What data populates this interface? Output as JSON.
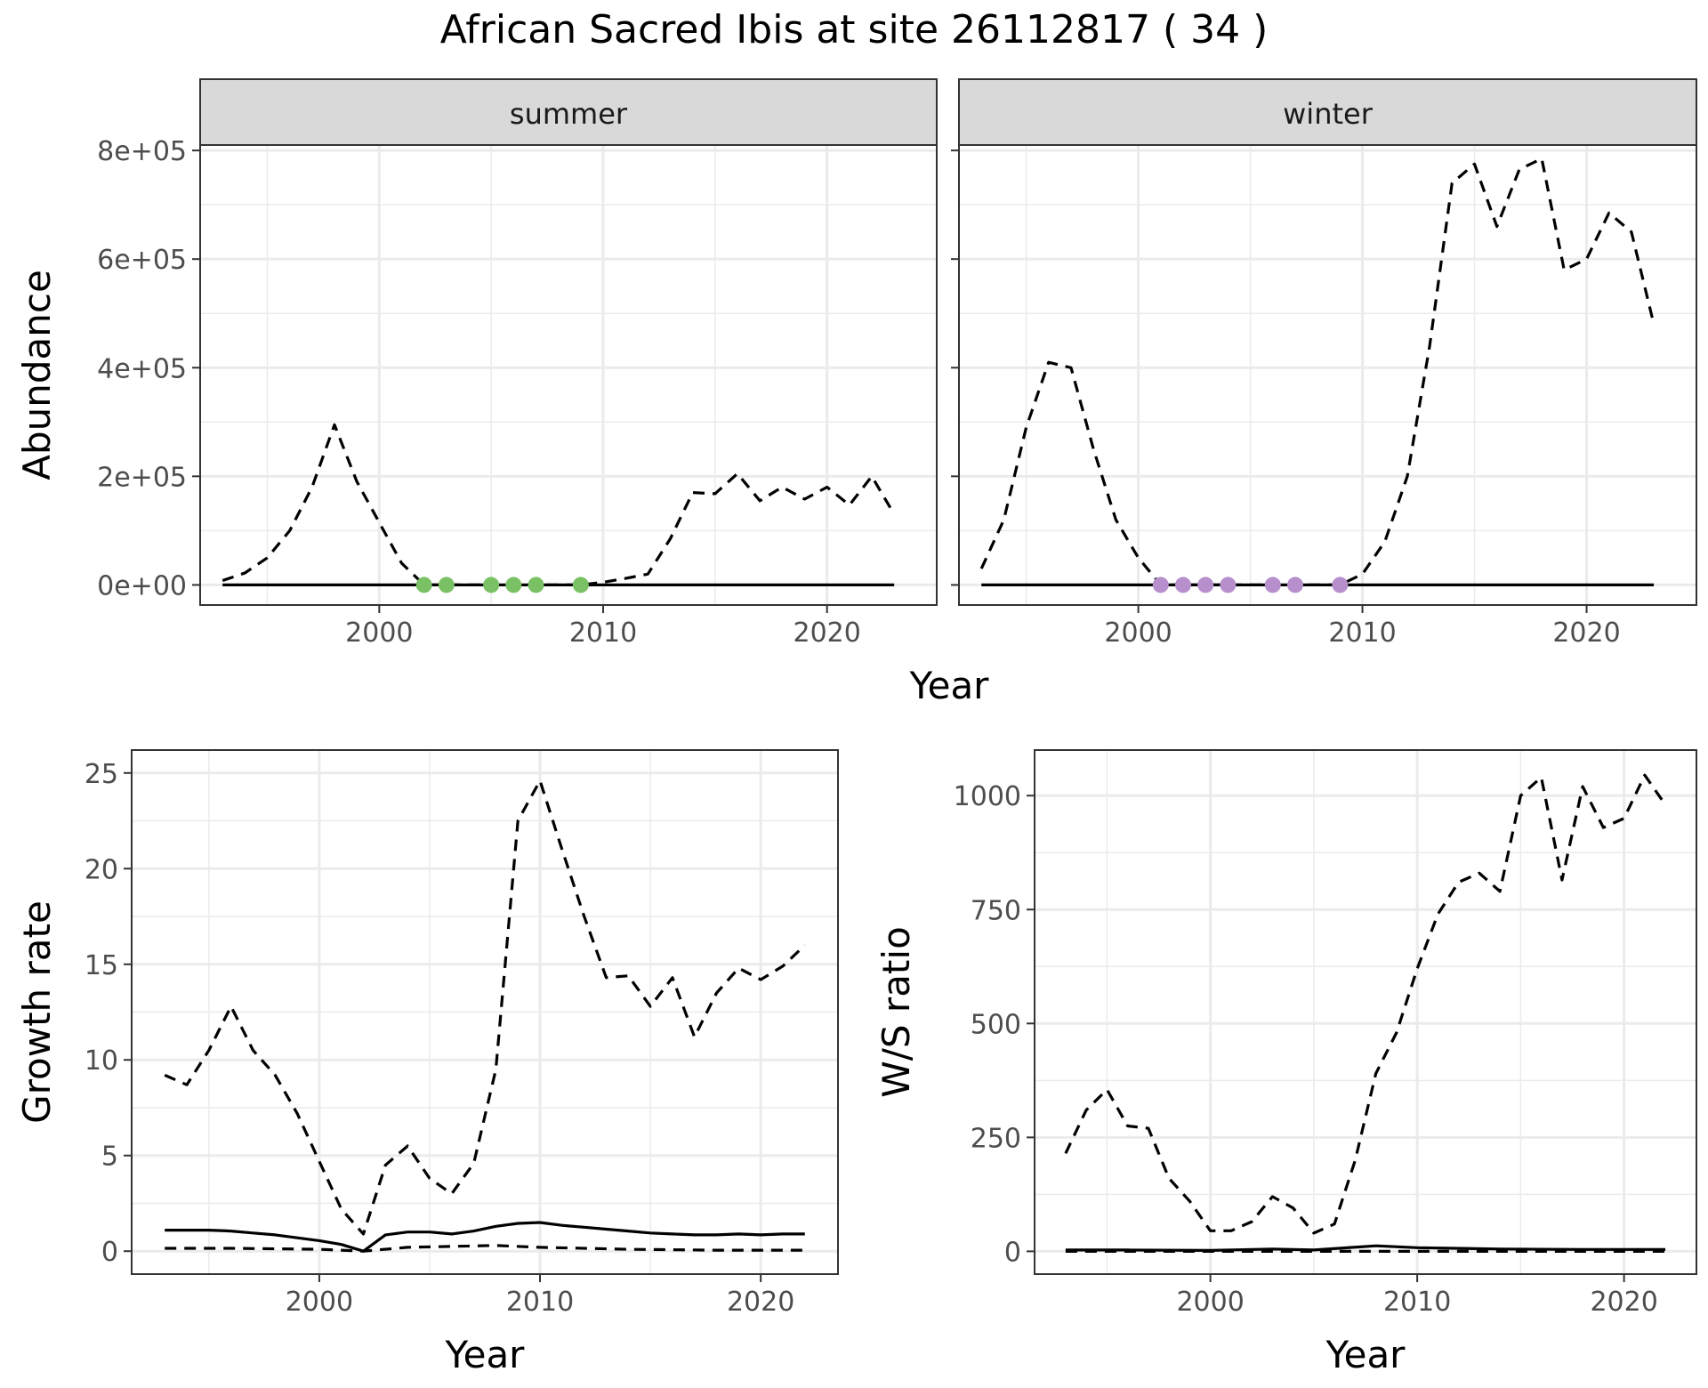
{
  "title": "African Sacred Ibis at site 26112817 ( 34 )",
  "colors": {
    "summer_points": "#7ac165",
    "winter_points": "#b68fcc",
    "line": "#000000",
    "strip_fill": "#d9d9d9",
    "grid": "#ebebeb"
  },
  "chart_data": [
    {
      "type": "line",
      "panel": "summer",
      "strip_label": "summer",
      "xlabel": "Year",
      "ylabel": "Abundance",
      "xlim": [
        1992.0,
        2024.9
      ],
      "ylim": [
        -37000,
        810000
      ],
      "x_ticks": [
        2000,
        2010,
        2020
      ],
      "x_tick_labels": [
        "2000",
        "2010",
        "2020"
      ],
      "y_ticks": [
        0,
        200000,
        400000,
        600000,
        800000
      ],
      "y_tick_labels": [
        "0e+00",
        "2e+05",
        "4e+05",
        "6e+05",
        "8e+05"
      ],
      "grid": true,
      "series": [
        {
          "style": "dashed",
          "x": [
            1993,
            1994,
            1995,
            1996,
            1997,
            1998,
            1999,
            2000,
            2001,
            2002,
            2003,
            2004,
            2005,
            2006,
            2007,
            2008,
            2009,
            2010,
            2011,
            2012,
            2013,
            2014,
            2015,
            2016,
            2017,
            2018,
            2019,
            2020,
            2021,
            2022,
            2023
          ],
          "y": [
            8000,
            22000,
            50000,
            100000,
            180000,
            295000,
            190000,
            115000,
            40000,
            0,
            0,
            0,
            0,
            0,
            0,
            0,
            0,
            5000,
            12000,
            20000,
            85000,
            170000,
            168000,
            205000,
            155000,
            180000,
            158000,
            180000,
            147000,
            200000,
            130000
          ]
        },
        {
          "style": "solid",
          "x": [
            1993,
            2023
          ],
          "y": [
            0,
            0
          ]
        }
      ],
      "points": {
        "x": [
          2002,
          2003,
          2005,
          2006,
          2007,
          2009
        ],
        "y": [
          0,
          0,
          0,
          0,
          0,
          0
        ]
      }
    },
    {
      "type": "line",
      "panel": "winter",
      "strip_label": "winter",
      "xlabel": "Year",
      "ylabel": "",
      "xlim": [
        1992.0,
        2024.9
      ],
      "ylim": [
        -37000,
        810000
      ],
      "x_ticks": [
        2000,
        2010,
        2020
      ],
      "x_tick_labels": [
        "2000",
        "2010",
        "2020"
      ],
      "grid": true,
      "series": [
        {
          "style": "dashed",
          "x": [
            1993,
            1994,
            1995,
            1996,
            1997,
            1998,
            1999,
            2000,
            2001,
            2002,
            2003,
            2004,
            2005,
            2006,
            2007,
            2008,
            2009,
            2010,
            2011,
            2012,
            2013,
            2014,
            2015,
            2016,
            2017,
            2018,
            2019,
            2020,
            2021,
            2022,
            2023
          ],
          "y": [
            30000,
            120000,
            290000,
            410000,
            400000,
            250000,
            120000,
            50000,
            0,
            0,
            0,
            0,
            0,
            0,
            0,
            0,
            0,
            20000,
            80000,
            200000,
            440000,
            740000,
            775000,
            660000,
            765000,
            785000,
            580000,
            600000,
            685000,
            650000,
            480000
          ]
        },
        {
          "style": "solid",
          "x": [
            1993,
            2023
          ],
          "y": [
            0,
            0
          ]
        }
      ],
      "points": {
        "x": [
          2001,
          2002,
          2003,
          2004,
          2006,
          2007,
          2009
        ],
        "y": [
          0,
          0,
          0,
          0,
          0,
          0,
          0
        ]
      }
    },
    {
      "type": "line",
      "panel": "growth",
      "xlabel": "Year",
      "ylabel": "Growth rate",
      "xlim": [
        1991.5,
        2023.5
      ],
      "ylim": [
        -1.2,
        26.2
      ],
      "x_ticks": [
        2000,
        2010,
        2020
      ],
      "x_tick_labels": [
        "2000",
        "2010",
        "2020"
      ],
      "y_ticks": [
        0,
        5,
        10,
        15,
        20,
        25
      ],
      "y_tick_labels": [
        "0",
        "5",
        "10",
        "15",
        "20",
        "25"
      ],
      "grid": true,
      "series": [
        {
          "style": "dashed",
          "x": [
            1993,
            1994,
            1995,
            1996,
            1997,
            1998,
            1999,
            2000,
            2001,
            2002,
            2003,
            2004,
            2005,
            2006,
            2007,
            2008,
            2009,
            2010,
            2011,
            2012,
            2013,
            2014,
            2015,
            2016,
            2017,
            2018,
            2019,
            2020,
            2021,
            2022
          ],
          "y": [
            9.2,
            8.7,
            10.5,
            12.8,
            10.5,
            9.2,
            7.2,
            4.7,
            2.2,
            0.9,
            4.5,
            5.5,
            3.8,
            3.0,
            4.6,
            9.5,
            22.5,
            24.6,
            21.0,
            17.5,
            14.3,
            14.4,
            12.8,
            14.3,
            11.2,
            13.5,
            14.8,
            14.2,
            14.9,
            16.0
          ]
        },
        {
          "style": "solid",
          "x": [
            1993,
            1994,
            1995,
            1996,
            1997,
            1998,
            1999,
            2000,
            2001,
            2002,
            2003,
            2004,
            2005,
            2006,
            2007,
            2008,
            2009,
            2010,
            2011,
            2012,
            2013,
            2014,
            2015,
            2016,
            2017,
            2018,
            2019,
            2020,
            2021,
            2022
          ],
          "y": [
            1.1,
            1.1,
            1.1,
            1.05,
            0.95,
            0.85,
            0.7,
            0.55,
            0.35,
            0.0,
            0.85,
            1.0,
            1.0,
            0.9,
            1.05,
            1.3,
            1.45,
            1.5,
            1.35,
            1.25,
            1.15,
            1.05,
            0.95,
            0.9,
            0.85,
            0.85,
            0.9,
            0.85,
            0.9,
            0.9
          ]
        },
        {
          "style": "dashed",
          "x": [
            1993,
            1996,
            2000,
            2002,
            2004,
            2008,
            2010,
            2014,
            2018,
            2022
          ],
          "y": [
            0.15,
            0.15,
            0.1,
            0.0,
            0.2,
            0.3,
            0.2,
            0.1,
            0.05,
            0.05
          ]
        }
      ]
    },
    {
      "type": "line",
      "panel": "ratio",
      "xlabel": "Year",
      "ylabel": "W/S ratio",
      "xlim": [
        1991.5,
        2023.5
      ],
      "ylim": [
        -50,
        1100
      ],
      "x_ticks": [
        2000,
        2010,
        2020
      ],
      "x_tick_labels": [
        "2000",
        "2010",
        "2020"
      ],
      "y_ticks": [
        0,
        250,
        500,
        750,
        1000
      ],
      "y_tick_labels": [
        "0",
        "250",
        "500",
        "750",
        "1000"
      ],
      "grid": true,
      "series": [
        {
          "style": "dashed",
          "x": [
            1993,
            1994,
            1995,
            1996,
            1997,
            1998,
            1999,
            2000,
            2001,
            2002,
            2003,
            2004,
            2005,
            2006,
            2007,
            2008,
            2009,
            2010,
            2011,
            2012,
            2013,
            2014,
            2015,
            2016,
            2017,
            2018,
            2019,
            2020,
            2021,
            2022
          ],
          "y": [
            215,
            310,
            355,
            275,
            270,
            160,
            110,
            45,
            45,
            65,
            120,
            95,
            40,
            60,
            200,
            390,
            480,
            620,
            740,
            810,
            830,
            790,
            1000,
            1040,
            815,
            1020,
            930,
            950,
            1045,
            980
          ]
        },
        {
          "style": "solid",
          "x": [
            1993,
            1996,
            2000,
            2003,
            2005,
            2008,
            2010,
            2014,
            2018,
            2022
          ],
          "y": [
            3,
            3,
            2,
            5,
            3,
            12,
            8,
            5,
            4,
            4
          ]
        },
        {
          "style": "dashed",
          "x": [
            1993,
            2022
          ],
          "y": [
            0,
            0
          ]
        }
      ]
    }
  ]
}
